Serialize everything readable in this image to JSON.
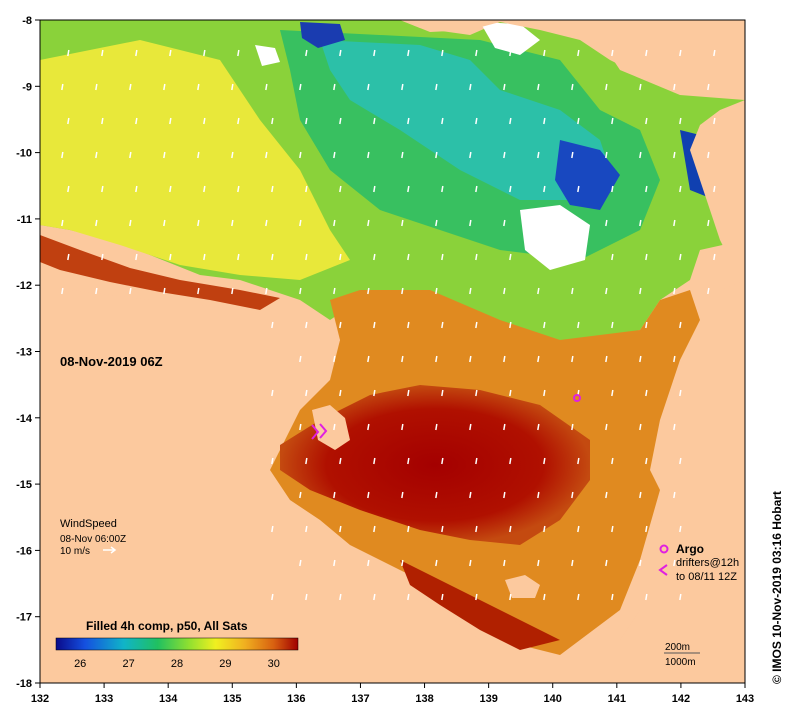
{
  "map": {
    "lon_ticks": [
      "132",
      "133",
      "134",
      "135",
      "136",
      "137",
      "138",
      "139",
      "140",
      "141",
      "142",
      "143"
    ],
    "lat_ticks": [
      "-8",
      "-9",
      "-10",
      "-11",
      "-12",
      "-13",
      "-14",
      "-15",
      "-16",
      "-17",
      "-18"
    ],
    "lon_range": [
      132,
      143
    ],
    "lat_range": [
      -18,
      -8
    ],
    "date_label": "08-Nov-2019 06Z",
    "wind": {
      "title": "WindSpeed",
      "time": "08-Nov 06:00Z",
      "scale": "10 m/s"
    },
    "legend": {
      "argo": "Argo",
      "drifters_line1": "drifters@12h",
      "drifters_line2": "to 08/11 12Z"
    },
    "isobaths": {
      "depth1": "200m",
      "depth2": "1000m"
    },
    "colorbar": {
      "title": "Filled 4h comp, p50, All Sats",
      "ticks": [
        "26",
        "27",
        "28",
        "29",
        "30"
      ],
      "range": [
        25.5,
        30.5
      ]
    },
    "credit": "© IMOS 10-Nov-2019 03:16 Hobart",
    "colors": {
      "land": "#fcc99e",
      "cloud": "#ffffff",
      "argo": "#e020e0",
      "sst_warm": "#a80000",
      "sst_cool": "#0a3cc8"
    }
  }
}
